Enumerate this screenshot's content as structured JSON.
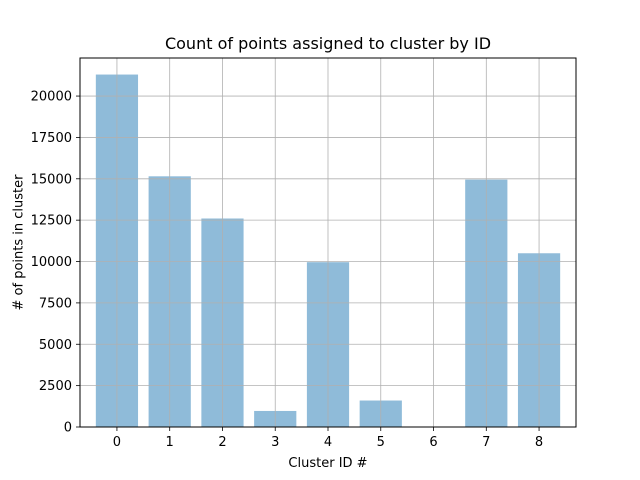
{
  "chart_data": {
    "type": "bar",
    "title": "Count of points assigned to cluster by ID",
    "xlabel": "Cluster ID #",
    "ylabel": "# of points in cluster",
    "categories": [
      "0",
      "1",
      "2",
      "3",
      "4",
      "5",
      "6",
      "7",
      "8"
    ],
    "values": [
      21300,
      15150,
      12600,
      970,
      9960,
      1600,
      0,
      14950,
      10500
    ],
    "ylim": [
      0,
      22300
    ],
    "yticks": [
      0,
      2500,
      5000,
      7500,
      10000,
      12500,
      15000,
      17500,
      20000
    ],
    "grid": true,
    "bar_color": "#8fbbd9",
    "grid_color": "#b0b0b0"
  }
}
